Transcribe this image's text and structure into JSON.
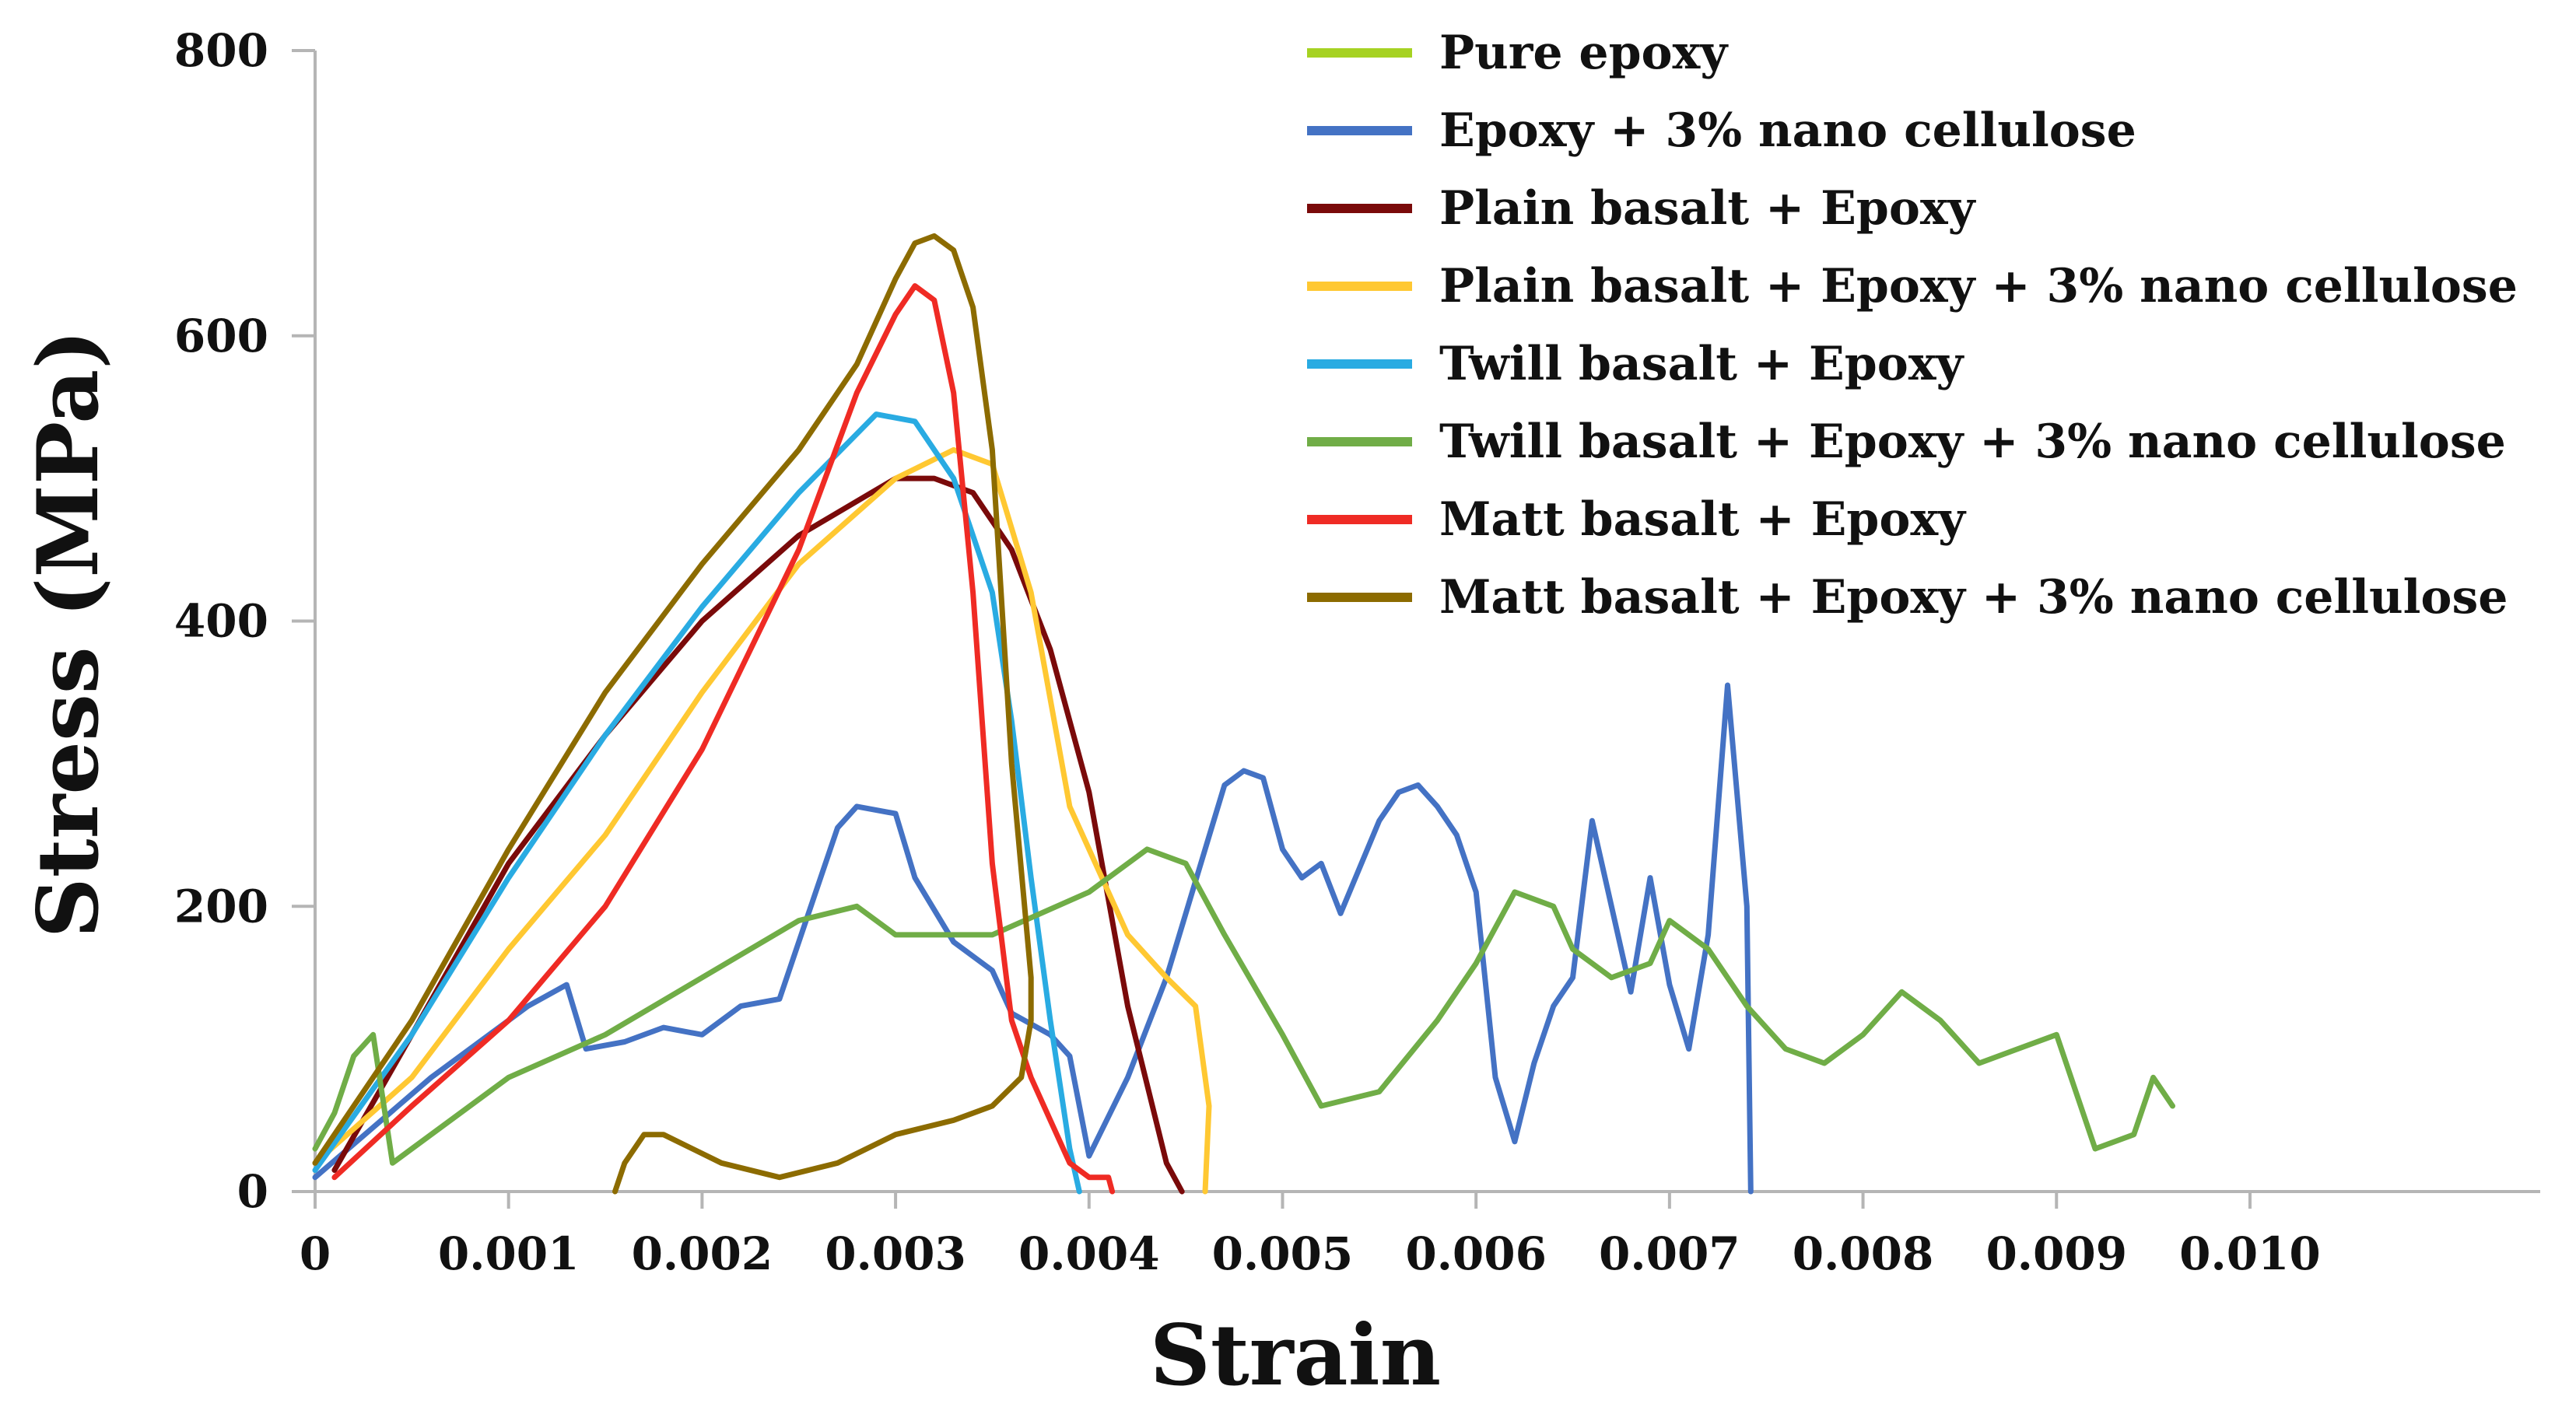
{
  "chart_data": {
    "type": "line",
    "xlabel": "Strain",
    "ylabel": "Stress (MPa)",
    "xlim": [
      0,
      0.0115
    ],
    "ylim": [
      0,
      800
    ],
    "grid": false,
    "legend_position": "top-right",
    "x_ticks": [
      0,
      0.001,
      0.002,
      0.003,
      0.004,
      0.005,
      0.006,
      0.007,
      0.008,
      0.009,
      0.01
    ],
    "x_tick_labels": [
      "0",
      "0.001",
      "0.002",
      "0.003",
      "0.004",
      "0.005",
      "0.006",
      "0.007",
      "0.008",
      "0.009",
      "0.010"
    ],
    "y_ticks": [
      0,
      200,
      400,
      600,
      800
    ],
    "y_tick_labels": [
      "0",
      "200",
      "400",
      "600",
      "800"
    ],
    "series": [
      {
        "name": "Pure epoxy",
        "color": "#a6d222",
        "x": [],
        "y": []
      },
      {
        "name": "Epoxy + 3% nano cellulose",
        "color": "#4472c4",
        "x": [
          0,
          0.0003,
          0.0006,
          0.0009,
          0.0011,
          0.0013,
          0.0014,
          0.0016,
          0.0018,
          0.002,
          0.0022,
          0.0024,
          0.0025,
          0.0027,
          0.0028,
          0.003,
          0.0031,
          0.0033,
          0.0035,
          0.0036,
          0.0038,
          0.0039,
          0.004,
          0.0042,
          0.0044,
          0.0046,
          0.0047,
          0.0048,
          0.0049,
          0.005,
          0.0051,
          0.0052,
          0.0053,
          0.0055,
          0.0056,
          0.0057,
          0.0058,
          0.0059,
          0.006,
          0.0061,
          0.0062,
          0.0063,
          0.0064,
          0.0065,
          0.0066,
          0.0067,
          0.0068,
          0.0069,
          0.007,
          0.0071,
          0.0072,
          0.0073,
          0.0074,
          0.00742
        ],
        "y": [
          10,
          45,
          80,
          110,
          130,
          145,
          100,
          105,
          115,
          110,
          130,
          135,
          175,
          255,
          270,
          265,
          220,
          175,
          155,
          125,
          110,
          95,
          25,
          80,
          150,
          240,
          285,
          295,
          290,
          240,
          220,
          230,
          195,
          260,
          280,
          285,
          270,
          250,
          210,
          80,
          35,
          90,
          130,
          150,
          260,
          200,
          140,
          220,
          145,
          100,
          180,
          355,
          200,
          0
        ]
      },
      {
        "name": "Plain basalt + Epoxy",
        "color": "#7a0a0a",
        "x": [
          0.0001,
          0.0005,
          0.001,
          0.0015,
          0.002,
          0.0025,
          0.003,
          0.0032,
          0.0034,
          0.0036,
          0.0038,
          0.004,
          0.0042,
          0.0044,
          0.00448
        ],
        "y": [
          15,
          110,
          230,
          320,
          400,
          460,
          500,
          500,
          490,
          450,
          380,
          280,
          130,
          20,
          0
        ]
      },
      {
        "name": "Plain basalt + Epoxy + 3% nano cellulose",
        "color": "#ffc832",
        "x": [
          0,
          0.0005,
          0.001,
          0.0015,
          0.002,
          0.0025,
          0.003,
          0.0033,
          0.0035,
          0.0037,
          0.0039,
          0.0042,
          0.0044,
          0.00455,
          0.00462,
          0.0046
        ],
        "y": [
          20,
          80,
          170,
          250,
          350,
          440,
          500,
          520,
          510,
          420,
          270,
          180,
          150,
          130,
          60,
          0
        ]
      },
      {
        "name": "Twill basalt + Epoxy",
        "color": "#29abe2",
        "x": [
          0,
          0.0005,
          0.001,
          0.0015,
          0.002,
          0.0025,
          0.0029,
          0.0031,
          0.0033,
          0.0035,
          0.0036,
          0.0037,
          0.0038,
          0.0039,
          0.00395
        ],
        "y": [
          15,
          110,
          220,
          320,
          410,
          490,
          545,
          540,
          500,
          420,
          330,
          220,
          120,
          30,
          0
        ]
      },
      {
        "name": "Twill basalt + Epoxy + 3% nano cellulose",
        "color": "#70ad47",
        "x": [
          0,
          0.0001,
          0.0002,
          0.0003,
          0.0004,
          0.0005,
          0.001,
          0.0015,
          0.002,
          0.0025,
          0.0028,
          0.003,
          0.0035,
          0.004,
          0.0043,
          0.0045,
          0.0047,
          0.005,
          0.0052,
          0.0055,
          0.0058,
          0.006,
          0.0062,
          0.0064,
          0.0065,
          0.0067,
          0.0069,
          0.007,
          0.0072,
          0.0074,
          0.0076,
          0.0078,
          0.008,
          0.0082,
          0.0084,
          0.0086,
          0.0088,
          0.009,
          0.0092,
          0.0094,
          0.0095,
          0.0096
        ],
        "y": [
          30,
          55,
          95,
          110,
          20,
          30,
          80,
          110,
          150,
          190,
          200,
          180,
          180,
          210,
          240,
          230,
          180,
          110,
          60,
          70,
          120,
          160,
          210,
          200,
          170,
          150,
          160,
          190,
          170,
          130,
          100,
          90,
          110,
          140,
          120,
          90,
          100,
          110,
          30,
          40,
          80,
          60
        ]
      },
      {
        "name": "Matt basalt + Epoxy",
        "color": "#ef2b24",
        "x": [
          0.0001,
          0.0005,
          0.001,
          0.0015,
          0.002,
          0.0025,
          0.0028,
          0.003,
          0.0031,
          0.0032,
          0.0033,
          0.0034,
          0.0035,
          0.0036,
          0.0037,
          0.0038,
          0.0039,
          0.004,
          0.0041,
          0.00412
        ],
        "y": [
          10,
          60,
          120,
          200,
          310,
          450,
          560,
          615,
          635,
          625,
          560,
          420,
          230,
          120,
          80,
          50,
          20,
          10,
          10,
          0
        ]
      },
      {
        "name": "Matt basalt + Epoxy + 3% nano cellulose",
        "color": "#8c6b00",
        "x": [
          0,
          0.0005,
          0.001,
          0.0015,
          0.002,
          0.0025,
          0.0028,
          0.003,
          0.0031,
          0.0032,
          0.0033,
          0.0034,
          0.0035,
          0.0036,
          0.0037,
          0.0037,
          0.00365,
          0.0035,
          0.0033,
          0.003,
          0.0027,
          0.0024,
          0.0021,
          0.0018,
          0.0017,
          0.0016,
          0.00155
        ],
        "y": [
          20,
          120,
          240,
          350,
          440,
          520,
          580,
          640,
          665,
          670,
          660,
          620,
          520,
          300,
          150,
          120,
          80,
          60,
          50,
          40,
          20,
          10,
          20,
          40,
          40,
          20,
          0
        ]
      }
    ]
  }
}
